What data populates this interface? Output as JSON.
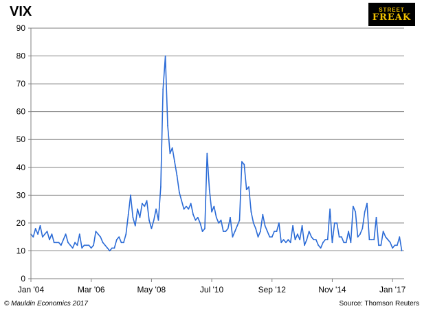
{
  "chart_data": {
    "type": "line",
    "title": "VIX",
    "xlabel": "",
    "ylabel": "",
    "ylim": [
      0,
      90
    ],
    "yticks": [
      0,
      10,
      20,
      30,
      40,
      50,
      60,
      70,
      80,
      90
    ],
    "xlim": [
      "2004-01",
      "2017-06"
    ],
    "xticks": [
      {
        "date": "2004-01",
        "label": "Jan '04"
      },
      {
        "date": "2006-03",
        "label": "Mar '06"
      },
      {
        "date": "2008-05",
        "label": "May '08"
      },
      {
        "date": "2010-07",
        "label": "Jul '10"
      },
      {
        "date": "2012-09",
        "label": "Sep '12"
      },
      {
        "date": "2014-11",
        "label": "Nov '14"
      },
      {
        "date": "2017-01",
        "label": "Jan '17"
      }
    ],
    "grid": true,
    "series": [
      {
        "color": "#2b6bd6",
        "points": [
          [
            "2004-01",
            16
          ],
          [
            "2004-02",
            15
          ],
          [
            "2004-03",
            18
          ],
          [
            "2004-04",
            16
          ],
          [
            "2004-05",
            19
          ],
          [
            "2004-06",
            15
          ],
          [
            "2004-07",
            16
          ],
          [
            "2004-08",
            17
          ],
          [
            "2004-09",
            14
          ],
          [
            "2004-10",
            16
          ],
          [
            "2004-11",
            13
          ],
          [
            "2004-12",
            13
          ],
          [
            "2005-01",
            13
          ],
          [
            "2005-02",
            12
          ],
          [
            "2005-03",
            14
          ],
          [
            "2005-04",
            16
          ],
          [
            "2005-05",
            13
          ],
          [
            "2005-06",
            12
          ],
          [
            "2005-07",
            11
          ],
          [
            "2005-08",
            13
          ],
          [
            "2005-09",
            12
          ],
          [
            "2005-10",
            16
          ],
          [
            "2005-11",
            11
          ],
          [
            "2005-12",
            12
          ],
          [
            "2006-01",
            12
          ],
          [
            "2006-02",
            12
          ],
          [
            "2006-03",
            11
          ],
          [
            "2006-04",
            12
          ],
          [
            "2006-05",
            17
          ],
          [
            "2006-06",
            16
          ],
          [
            "2006-07",
            15
          ],
          [
            "2006-08",
            13
          ],
          [
            "2006-09",
            12
          ],
          [
            "2006-10",
            11
          ],
          [
            "2006-11",
            10
          ],
          [
            "2006-12",
            11
          ],
          [
            "2007-01",
            11
          ],
          [
            "2007-02",
            14
          ],
          [
            "2007-03",
            15
          ],
          [
            "2007-04",
            13
          ],
          [
            "2007-05",
            13
          ],
          [
            "2007-06",
            16
          ],
          [
            "2007-07",
            23
          ],
          [
            "2007-08",
            30
          ],
          [
            "2007-09",
            22
          ],
          [
            "2007-10",
            19
          ],
          [
            "2007-11",
            25
          ],
          [
            "2007-12",
            22
          ],
          [
            "2008-01",
            27
          ],
          [
            "2008-02",
            26
          ],
          [
            "2008-03",
            28
          ],
          [
            "2008-04",
            21
          ],
          [
            "2008-05",
            18
          ],
          [
            "2008-06",
            21
          ],
          [
            "2008-07",
            25
          ],
          [
            "2008-08",
            21
          ],
          [
            "2008-09",
            33
          ],
          [
            "2008-10",
            68
          ],
          [
            "2008-11",
            80
          ],
          [
            "2008-12",
            55
          ],
          [
            "2009-01",
            45
          ],
          [
            "2009-02",
            47
          ],
          [
            "2009-03",
            42
          ],
          [
            "2009-04",
            37
          ],
          [
            "2009-05",
            31
          ],
          [
            "2009-06",
            28
          ],
          [
            "2009-07",
            25
          ],
          [
            "2009-08",
            26
          ],
          [
            "2009-09",
            25
          ],
          [
            "2009-10",
            27
          ],
          [
            "2009-11",
            23
          ],
          [
            "2009-12",
            21
          ],
          [
            "2010-01",
            22
          ],
          [
            "2010-02",
            20
          ],
          [
            "2010-03",
            17
          ],
          [
            "2010-04",
            18
          ],
          [
            "2010-05",
            45
          ],
          [
            "2010-06",
            32
          ],
          [
            "2010-07",
            24
          ],
          [
            "2010-08",
            26
          ],
          [
            "2010-09",
            22
          ],
          [
            "2010-10",
            20
          ],
          [
            "2010-11",
            21
          ],
          [
            "2010-12",
            17
          ],
          [
            "2011-01",
            17
          ],
          [
            "2011-02",
            18
          ],
          [
            "2011-03",
            22
          ],
          [
            "2011-04",
            15
          ],
          [
            "2011-05",
            17
          ],
          [
            "2011-06",
            19
          ],
          [
            "2011-07",
            21
          ],
          [
            "2011-08",
            42
          ],
          [
            "2011-09",
            41
          ],
          [
            "2011-10",
            32
          ],
          [
            "2011-11",
            33
          ],
          [
            "2011-12",
            24
          ],
          [
            "2012-01",
            20
          ],
          [
            "2012-02",
            18
          ],
          [
            "2012-03",
            15
          ],
          [
            "2012-04",
            17
          ],
          [
            "2012-05",
            23
          ],
          [
            "2012-06",
            19
          ],
          [
            "2012-07",
            17
          ],
          [
            "2012-08",
            15
          ],
          [
            "2012-09",
            15
          ],
          [
            "2012-10",
            17
          ],
          [
            "2012-11",
            17
          ],
          [
            "2012-12",
            20
          ],
          [
            "2013-01",
            13
          ],
          [
            "2013-02",
            14
          ],
          [
            "2013-03",
            13
          ],
          [
            "2013-04",
            14
          ],
          [
            "2013-05",
            13
          ],
          [
            "2013-06",
            19
          ],
          [
            "2013-07",
            14
          ],
          [
            "2013-08",
            16
          ],
          [
            "2013-09",
            14
          ],
          [
            "2013-10",
            19
          ],
          [
            "2013-11",
            12
          ],
          [
            "2013-12",
            14
          ],
          [
            "2014-01",
            17
          ],
          [
            "2014-02",
            15
          ],
          [
            "2014-03",
            14
          ],
          [
            "2014-04",
            14
          ],
          [
            "2014-05",
            12
          ],
          [
            "2014-06",
            11
          ],
          [
            "2014-07",
            13
          ],
          [
            "2014-08",
            14
          ],
          [
            "2014-09",
            14
          ],
          [
            "2014-10",
            25
          ],
          [
            "2014-11",
            13
          ],
          [
            "2014-12",
            20
          ],
          [
            "2015-01",
            20
          ],
          [
            "2015-02",
            15
          ],
          [
            "2015-03",
            15
          ],
          [
            "2015-04",
            13
          ],
          [
            "2015-05",
            13
          ],
          [
            "2015-06",
            17
          ],
          [
            "2015-07",
            13
          ],
          [
            "2015-08",
            26
          ],
          [
            "2015-09",
            24
          ],
          [
            "2015-10",
            15
          ],
          [
            "2015-11",
            16
          ],
          [
            "2015-12",
            18
          ],
          [
            "2016-01",
            24
          ],
          [
            "2016-02",
            27
          ],
          [
            "2016-03",
            14
          ],
          [
            "2016-04",
            14
          ],
          [
            "2016-05",
            14
          ],
          [
            "2016-06",
            22
          ],
          [
            "2016-07",
            12
          ],
          [
            "2016-08",
            12
          ],
          [
            "2016-09",
            17
          ],
          [
            "2016-10",
            15
          ],
          [
            "2016-11",
            14
          ],
          [
            "2016-12",
            13
          ],
          [
            "2017-01",
            11
          ],
          [
            "2017-02",
            12
          ],
          [
            "2017-03",
            12
          ],
          [
            "2017-04",
            15
          ],
          [
            "2017-05",
            10
          ]
        ]
      }
    ]
  },
  "logo": {
    "line1": "STREET",
    "line2": "FREAK"
  },
  "footer": {
    "left": "© Mauldin Economics 2017",
    "right": "Source: Thomson Reuters"
  }
}
